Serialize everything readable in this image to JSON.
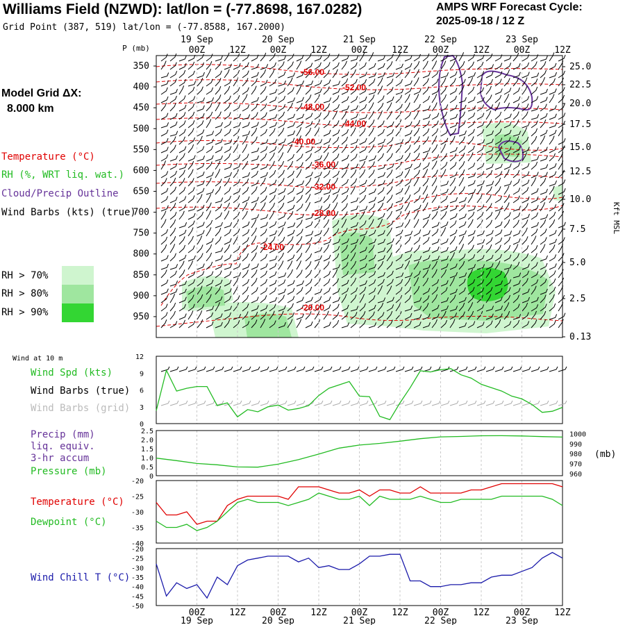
{
  "header": {
    "title": "Williams Field (NZWD):  lat/lon = (-77.8698, 167.0282)",
    "grid_point": "Grid Point (387, 519) lat/lon = (-77.8588, 167.2000)",
    "cycle_line1": "AMPS WRF Forecast Cycle:",
    "cycle_line2": "2025-09-18 / 12  Z",
    "model_grid_label": "Model Grid ΔX:",
    "model_grid_value": "8.000 km"
  },
  "legend": {
    "temperature": "Temperature (°C)",
    "rh": "RH (%, WRT liq. wat.)",
    "cloud": "Cloud/Precip Outline",
    "barbs": "Wind Barbs (kts) (true)",
    "rh70": "RH > 70%",
    "rh80": "RH > 80%",
    "rh90": "RH > 90%"
  },
  "colors": {
    "temp": "#e00000",
    "rh70": "#cff5cf",
    "rh80": "#9fe69f",
    "rh90": "#33d633",
    "cloud": "#663399",
    "wind": "#22bb22",
    "dew": "#22bb22",
    "chill": "#1a1aaa",
    "pressure": "#22bb22"
  },
  "chart_data": [
    {
      "type": "heatmap",
      "title": "Time-height cross section",
      "p_axis_label": "P (mb)",
      "kft_axis_label": "Kft MSL",
      "p_ticks": [
        "350",
        "400",
        "450",
        "500",
        "550",
        "600",
        "650",
        "700",
        "750",
        "800",
        "850",
        "900",
        "950"
      ],
      "kft_ticks": [
        "25.0",
        "22.5",
        "20.0",
        "17.5",
        "15.0",
        "12.5",
        "10.0",
        "7.5",
        "5.0",
        "2.5",
        "0.13"
      ],
      "time_ticks": [
        "00Z",
        "12Z",
        "00Z",
        "12Z",
        "00Z",
        "12Z",
        "00Z",
        "12Z",
        "00Z",
        "12Z"
      ],
      "date_labels": [
        "19 Sep",
        "20 Sep",
        "21 Sep",
        "22 Sep",
        "23 Sep"
      ],
      "temperature_contour_labels": [
        "-56.00",
        "-52.00",
        "-48.00",
        "-44.00",
        "-40.00",
        "-36.00",
        "-32.00",
        "-28.00",
        "-24.00",
        "-20.00"
      ],
      "ylim_mb": [
        325,
        1000
      ],
      "xlim_hours": [
        0,
        120
      ]
    },
    {
      "type": "line",
      "label": "Wind at 10 m",
      "series_labels": {
        "speed": "Wind Spd (kts)",
        "barbs_true": "Wind Barbs (true)",
        "barbs_grid": "Wind Barbs (grid)"
      },
      "y_ticks": [
        "0",
        "3",
        "6",
        "9",
        "12"
      ],
      "ylim": [
        0,
        12
      ],
      "x_hours": [
        0,
        3,
        6,
        9,
        12,
        15,
        18,
        21,
        24,
        27,
        30,
        33,
        36,
        39,
        42,
        45,
        48,
        51,
        54,
        57,
        60,
        63,
        66,
        69,
        72,
        75,
        78,
        81,
        84,
        87,
        90,
        93,
        96,
        99,
        102,
        105,
        108,
        111,
        114,
        117,
        120
      ],
      "speed": [
        2.3,
        9.5,
        5.8,
        6.3,
        6.6,
        6.6,
        3.2,
        3.7,
        1.2,
        2.5,
        2.1,
        3.0,
        3.3,
        2.4,
        2.7,
        3.2,
        5.0,
        6.3,
        6.9,
        7.5,
        4.9,
        4.8,
        1.3,
        0.7,
        3.7,
        6.4,
        9.4,
        9.2,
        9.6,
        9.8,
        8.7,
        8.1,
        7.0,
        6.4,
        5.8,
        4.9,
        4.4,
        3.4,
        2.0,
        2.2,
        2.9
      ]
    },
    {
      "type": "line",
      "series_labels": {
        "precip1": "Precip (mm)",
        "precip2": "liq. equiv.",
        "precip3": "3-hr accum",
        "pressure": "Pressure (mb)"
      },
      "left_ticks": [
        "0",
        "0.5",
        "1.0",
        "1.5",
        "2.0",
        "2.5"
      ],
      "right_ticks": [
        "960",
        "970",
        "980",
        "990",
        "1000"
      ],
      "right_unit": "(mb)",
      "ylim_pressure": [
        958,
        1003
      ],
      "x_hours": [
        0,
        6,
        12,
        18,
        24,
        30,
        36,
        42,
        48,
        54,
        60,
        66,
        72,
        78,
        84,
        90,
        96,
        102,
        108,
        114,
        120
      ],
      "pressure": [
        975.5,
        973.0,
        970.2,
        968.9,
        966.7,
        966.5,
        969.5,
        974.0,
        979.5,
        985.5,
        988.5,
        990.2,
        992.4,
        994.9,
        996.7,
        997.1,
        997.8,
        997.9,
        997.6,
        997.0,
        996.5
      ],
      "precip": []
    },
    {
      "type": "line",
      "series_labels": {
        "temperature": "Temperature (°C)",
        "dewpoint": "Dewpoint (°C)"
      },
      "y_ticks": [
        "-20",
        "-25",
        "-30",
        "-35",
        "-40"
      ],
      "ylim": [
        -40,
        -20
      ],
      "x_hours": [
        0,
        3,
        6,
        9,
        12,
        15,
        18,
        21,
        24,
        27,
        30,
        33,
        36,
        39,
        42,
        45,
        48,
        51,
        54,
        57,
        60,
        63,
        66,
        69,
        72,
        75,
        78,
        81,
        84,
        87,
        90,
        93,
        96,
        99,
        102,
        105,
        108,
        111,
        114,
        117,
        120
      ],
      "temperature": [
        -27,
        -31,
        -31,
        -30,
        -34,
        -33,
        -33,
        -28,
        -26,
        -25,
        -25,
        -25,
        -25,
        -26,
        -22,
        -22,
        -22,
        -23,
        -24,
        -24,
        -23,
        -25,
        -23,
        -23,
        -24,
        -24,
        -22,
        -24,
        -24,
        -24,
        -24,
        -23,
        -23,
        -22,
        -21,
        -21,
        -21,
        -21,
        -21,
        -21,
        -22
      ],
      "dewpoint": [
        -33,
        -35,
        -35,
        -34,
        -36,
        -35,
        -33,
        -30,
        -27,
        -26,
        -27,
        -27,
        -27,
        -28,
        -27,
        -26,
        -24,
        -25,
        -26,
        -26,
        -25,
        -28,
        -25,
        -26,
        -26,
        -26,
        -25,
        -26,
        -27,
        -27,
        -26,
        -26,
        -26,
        -26,
        -25,
        -25,
        -25,
        -25,
        -25,
        -26,
        -28
      ]
    },
    {
      "type": "line",
      "series_labels": {
        "wind_chill": "Wind Chill T (°C)"
      },
      "y_ticks": [
        "-20",
        "-25",
        "-30",
        "-35",
        "-40",
        "-45",
        "-50"
      ],
      "ylim": [
        -50,
        -20
      ],
      "x_hours": [
        0,
        3,
        6,
        9,
        12,
        15,
        18,
        21,
        24,
        27,
        30,
        33,
        36,
        39,
        42,
        45,
        48,
        51,
        54,
        57,
        60,
        63,
        66,
        69,
        72,
        75,
        78,
        81,
        84,
        87,
        90,
        93,
        96,
        99,
        102,
        105,
        108,
        111,
        114,
        117,
        120
      ],
      "wind_chill": [
        -28,
        -45,
        -38,
        -41,
        -39,
        -46,
        -35,
        -39,
        -29,
        -26,
        -25,
        -24,
        -24,
        -24,
        -27,
        -25,
        -30,
        -29,
        -31,
        -31,
        -28,
        -24,
        -24,
        -23,
        -23,
        -37,
        -37,
        -40,
        -40,
        -39,
        -39,
        -38,
        -38,
        -35,
        -34,
        -34,
        -32,
        -30,
        -25,
        -22,
        -25
      ]
    }
  ]
}
